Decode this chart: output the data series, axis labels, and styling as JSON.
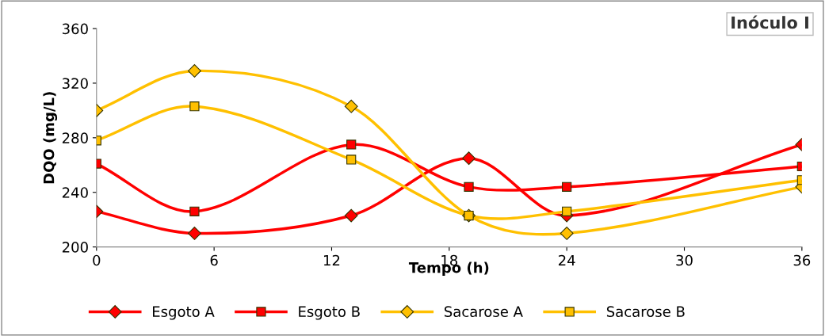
{
  "chart_data": {
    "type": "line",
    "title": "Inóculo I",
    "xlabel": "Tempo (h)",
    "ylabel": "DQO (mg/L)",
    "x": [
      0,
      5,
      13,
      19,
      24,
      36
    ],
    "xlim": [
      0,
      36
    ],
    "xticks": [
      0,
      6,
      12,
      18,
      24,
      30,
      36
    ],
    "ylim": [
      200,
      360
    ],
    "yticks": [
      200,
      240,
      280,
      320,
      360
    ],
    "grid": false,
    "legend": "bottom",
    "line_style": "solid",
    "series": [
      {
        "name": "Esgoto A",
        "color": "#ff0000",
        "marker": "diamond",
        "values": [
          226,
          210,
          223,
          265,
          223,
          275
        ]
      },
      {
        "name": "Esgoto B",
        "color": "#ff0000",
        "marker": "square",
        "values": [
          261,
          226,
          275,
          244,
          244,
          259
        ]
      },
      {
        "name": "Sacarose A",
        "color": "#ffc000",
        "marker": "diamond",
        "values": [
          300,
          329,
          303,
          223,
          210,
          244
        ]
      },
      {
        "name": "Sacarose B",
        "color": "#ffc000",
        "marker": "square",
        "values": [
          278,
          303,
          264,
          223,
          226,
          249
        ]
      }
    ]
  }
}
